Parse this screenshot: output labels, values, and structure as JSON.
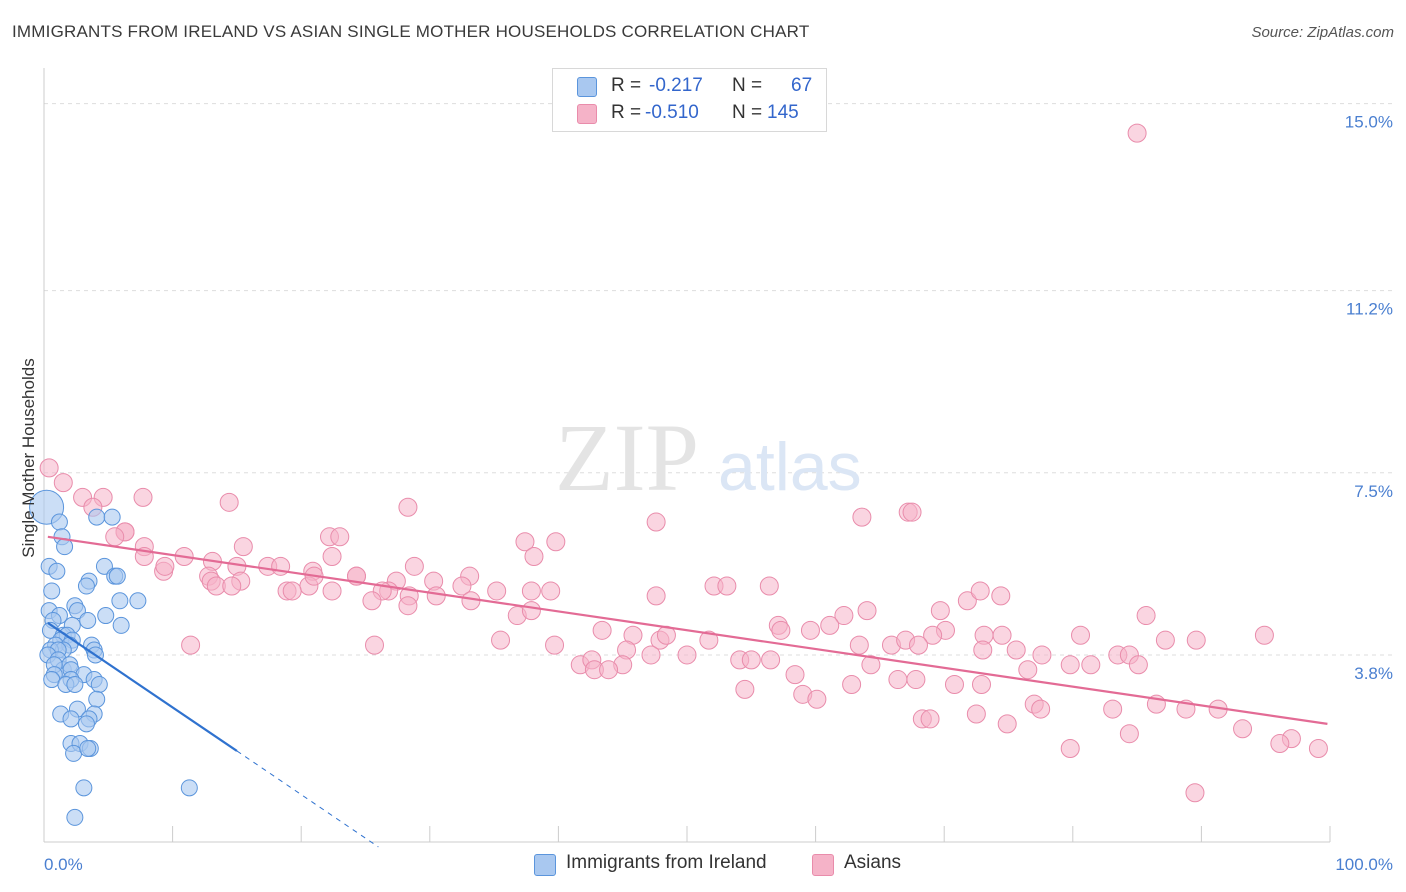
{
  "header": {
    "title": "IMMIGRANTS FROM IRELAND VS ASIAN SINGLE MOTHER HOUSEHOLDS CORRELATION CHART",
    "source": "Source: ZipAtlas.com"
  },
  "watermark": {
    "zip": "ZIP",
    "atlas": "atlas"
  },
  "legend": {
    "r_label": "R =",
    "n_label": "N =",
    "rows": [
      {
        "r": "-0.217",
        "n": "67",
        "color": "#a9c8f0"
      },
      {
        "r": "-0.510",
        "n": "145",
        "color": "#f5b3c8"
      }
    ]
  },
  "bottom_legend": [
    {
      "label": "Immigrants from Ireland",
      "color": "#a9c8f0"
    },
    {
      "label": "Asians",
      "color": "#f5b3c8"
    }
  ],
  "colors": {
    "blue_fill": "#a9c8f0",
    "blue_stroke": "#5b95dc",
    "blue_line": "#2f72cf",
    "pink_fill": "#f5b3c8",
    "pink_stroke": "#e98cab",
    "pink_line": "#e36b95",
    "tick_text": "#4a7fd0",
    "grid": "#dddddd"
  },
  "chart_data": {
    "type": "scatter",
    "title": "IMMIGRANTS FROM IRELAND VS ASIAN SINGLE MOTHER HOUSEHOLDS CORRELATION CHART",
    "xlabel": "",
    "ylabel": "Single Mother Households",
    "xlim": [
      0,
      100
    ],
    "ylim": [
      0,
      15.5
    ],
    "x_tick_labels": [
      "0.0%",
      "100.0%"
    ],
    "y_ticks": [
      {
        "value": 3.8,
        "label": "3.8%"
      },
      {
        "value": 7.5,
        "label": "7.5%"
      },
      {
        "value": 11.2,
        "label": "11.2%"
      },
      {
        "value": 15.0,
        "label": "15.0%"
      }
    ],
    "grid": "horizontal dashed",
    "series": [
      {
        "name": "Immigrants from Ireland",
        "R": -0.217,
        "N": 67,
        "trend": {
          "x": [
            0.3,
            15.0
          ],
          "y": [
            4.45,
            1.85
          ],
          "dashed_to": [
            26.0,
            -0.1
          ]
        },
        "points": [
          [
            0.2,
            6.8
          ],
          [
            1.2,
            6.5
          ],
          [
            1.4,
            6.2
          ],
          [
            1.6,
            6.0
          ],
          [
            4.1,
            6.6
          ],
          [
            5.3,
            6.6
          ],
          [
            0.4,
            5.6
          ],
          [
            1.0,
            5.5
          ],
          [
            4.7,
            5.6
          ],
          [
            3.5,
            5.3
          ],
          [
            5.5,
            5.4
          ],
          [
            5.7,
            5.4
          ],
          [
            3.3,
            5.2
          ],
          [
            0.6,
            5.1
          ],
          [
            7.3,
            4.9
          ],
          [
            5.9,
            4.9
          ],
          [
            0.4,
            4.7
          ],
          [
            2.4,
            4.8
          ],
          [
            2.6,
            4.7
          ],
          [
            1.2,
            4.6
          ],
          [
            0.7,
            4.5
          ],
          [
            3.4,
            4.5
          ],
          [
            4.8,
            4.6
          ],
          [
            6.0,
            4.4
          ],
          [
            2.2,
            4.4
          ],
          [
            0.5,
            4.3
          ],
          [
            1.5,
            4.2
          ],
          [
            1.8,
            4.2
          ],
          [
            1.3,
            4.1
          ],
          [
            2.2,
            4.1
          ],
          [
            0.9,
            4.0
          ],
          [
            2.0,
            4.0
          ],
          [
            1.5,
            3.9
          ],
          [
            3.7,
            4.0
          ],
          [
            0.5,
            3.9
          ],
          [
            3.9,
            3.9
          ],
          [
            1.1,
            3.9
          ],
          [
            4.0,
            3.8
          ],
          [
            0.3,
            3.8
          ],
          [
            1.1,
            3.7
          ],
          [
            1.5,
            3.5
          ],
          [
            2.0,
            3.6
          ],
          [
            0.8,
            3.6
          ],
          [
            2.1,
            3.5
          ],
          [
            0.8,
            3.4
          ],
          [
            3.1,
            3.4
          ],
          [
            2.1,
            3.3
          ],
          [
            3.9,
            3.3
          ],
          [
            0.6,
            3.3
          ],
          [
            1.7,
            3.2
          ],
          [
            2.4,
            3.2
          ],
          [
            4.3,
            3.2
          ],
          [
            4.1,
            2.9
          ],
          [
            2.6,
            2.7
          ],
          [
            3.9,
            2.6
          ],
          [
            1.3,
            2.6
          ],
          [
            2.1,
            2.5
          ],
          [
            3.5,
            2.5
          ],
          [
            3.3,
            2.4
          ],
          [
            2.1,
            2.0
          ],
          [
            2.8,
            2.0
          ],
          [
            3.6,
            1.9
          ],
          [
            2.3,
            1.8
          ],
          [
            3.4,
            1.9
          ],
          [
            11.3,
            1.1
          ],
          [
            3.1,
            1.1
          ],
          [
            2.4,
            0.5
          ]
        ]
      },
      {
        "name": "Asians",
        "R": -0.51,
        "N": 145,
        "trend": {
          "x": [
            0.3,
            99.8
          ],
          "y": [
            6.2,
            2.4
          ]
        },
        "points": [
          [
            85.0,
            14.4
          ],
          [
            0.4,
            7.6
          ],
          [
            1.5,
            7.3
          ],
          [
            3.0,
            7.0
          ],
          [
            4.6,
            7.0
          ],
          [
            7.7,
            7.0
          ],
          [
            3.8,
            6.8
          ],
          [
            14.4,
            6.9
          ],
          [
            28.3,
            6.8
          ],
          [
            47.6,
            6.5
          ],
          [
            67.2,
            6.7
          ],
          [
            67.5,
            6.7
          ],
          [
            63.6,
            6.6
          ],
          [
            6.3,
            6.3
          ],
          [
            6.3,
            6.3
          ],
          [
            5.5,
            6.2
          ],
          [
            22.2,
            6.2
          ],
          [
            23.0,
            6.2
          ],
          [
            39.8,
            6.1
          ],
          [
            37.4,
            6.1
          ],
          [
            38.1,
            5.8
          ],
          [
            7.8,
            6.0
          ],
          [
            7.8,
            5.8
          ],
          [
            10.9,
            5.8
          ],
          [
            15.5,
            6.0
          ],
          [
            22.4,
            5.8
          ],
          [
            15.0,
            5.6
          ],
          [
            13.1,
            5.7
          ],
          [
            17.4,
            5.6
          ],
          [
            18.4,
            5.6
          ],
          [
            20.9,
            5.5
          ],
          [
            15.3,
            5.3
          ],
          [
            9.3,
            5.5
          ],
          [
            9.4,
            5.6
          ],
          [
            24.3,
            5.4
          ],
          [
            24.3,
            5.4
          ],
          [
            27.4,
            5.3
          ],
          [
            28.8,
            5.6
          ],
          [
            30.3,
            5.3
          ],
          [
            33.1,
            5.4
          ],
          [
            20.6,
            5.2
          ],
          [
            21.0,
            5.4
          ],
          [
            12.8,
            5.4
          ],
          [
            13.0,
            5.3
          ],
          [
            13.4,
            5.2
          ],
          [
            14.6,
            5.2
          ],
          [
            18.9,
            5.1
          ],
          [
            19.3,
            5.1
          ],
          [
            22.4,
            5.1
          ],
          [
            26.8,
            5.1
          ],
          [
            26.3,
            5.1
          ],
          [
            28.4,
            5.0
          ],
          [
            32.5,
            5.2
          ],
          [
            35.2,
            5.1
          ],
          [
            37.9,
            5.1
          ],
          [
            39.4,
            5.1
          ],
          [
            25.5,
            4.9
          ],
          [
            28.3,
            4.8
          ],
          [
            30.5,
            5.0
          ],
          [
            33.2,
            4.9
          ],
          [
            36.8,
            4.6
          ],
          [
            37.9,
            4.7
          ],
          [
            43.4,
            4.3
          ],
          [
            47.6,
            5.0
          ],
          [
            52.1,
            5.2
          ],
          [
            53.1,
            5.2
          ],
          [
            56.4,
            5.2
          ],
          [
            62.2,
            4.6
          ],
          [
            64.0,
            4.7
          ],
          [
            69.7,
            4.7
          ],
          [
            71.8,
            4.9
          ],
          [
            72.8,
            5.1
          ],
          [
            74.4,
            5.0
          ],
          [
            70.1,
            4.3
          ],
          [
            69.1,
            4.2
          ],
          [
            73.1,
            4.2
          ],
          [
            74.5,
            4.2
          ],
          [
            80.6,
            4.2
          ],
          [
            85.7,
            4.6
          ],
          [
            94.9,
            4.2
          ],
          [
            11.4,
            4.0
          ],
          [
            25.7,
            4.0
          ],
          [
            35.5,
            4.1
          ],
          [
            39.7,
            4.0
          ],
          [
            45.8,
            4.2
          ],
          [
            47.9,
            4.1
          ],
          [
            48.4,
            4.2
          ],
          [
            51.7,
            4.1
          ],
          [
            57.1,
            4.4
          ],
          [
            57.3,
            4.3
          ],
          [
            59.6,
            4.3
          ],
          [
            61.1,
            4.4
          ],
          [
            63.4,
            4.0
          ],
          [
            65.9,
            4.0
          ],
          [
            67.0,
            4.1
          ],
          [
            68.0,
            4.0
          ],
          [
            73.0,
            3.9
          ],
          [
            75.6,
            3.9
          ],
          [
            77.6,
            3.8
          ],
          [
            83.5,
            3.8
          ],
          [
            84.4,
            3.8
          ],
          [
            85.1,
            3.6
          ],
          [
            87.2,
            4.1
          ],
          [
            89.6,
            4.1
          ],
          [
            45.3,
            3.9
          ],
          [
            41.7,
            3.6
          ],
          [
            42.6,
            3.7
          ],
          [
            45.0,
            3.6
          ],
          [
            47.2,
            3.8
          ],
          [
            50.0,
            3.8
          ],
          [
            54.1,
            3.7
          ],
          [
            55.0,
            3.7
          ],
          [
            64.3,
            3.6
          ],
          [
            58.4,
            3.4
          ],
          [
            56.5,
            3.7
          ],
          [
            62.8,
            3.2
          ],
          [
            66.4,
            3.3
          ],
          [
            67.8,
            3.3
          ],
          [
            70.8,
            3.2
          ],
          [
            72.9,
            3.2
          ],
          [
            76.5,
            3.5
          ],
          [
            79.8,
            3.6
          ],
          [
            81.4,
            3.6
          ],
          [
            42.8,
            3.5
          ],
          [
            43.9,
            3.5
          ],
          [
            54.5,
            3.1
          ],
          [
            59.0,
            3.0
          ],
          [
            60.1,
            2.9
          ],
          [
            77.0,
            2.8
          ],
          [
            77.5,
            2.7
          ],
          [
            83.1,
            2.7
          ],
          [
            86.5,
            2.8
          ],
          [
            88.8,
            2.7
          ],
          [
            68.3,
            2.5
          ],
          [
            68.9,
            2.5
          ],
          [
            72.5,
            2.6
          ],
          [
            91.3,
            2.7
          ],
          [
            74.9,
            2.4
          ],
          [
            84.4,
            2.2
          ],
          [
            79.8,
            1.9
          ],
          [
            93.2,
            2.3
          ],
          [
            97.0,
            2.1
          ],
          [
            96.1,
            2.0
          ],
          [
            99.1,
            1.9
          ],
          [
            89.5,
            1.0
          ]
        ]
      }
    ]
  }
}
